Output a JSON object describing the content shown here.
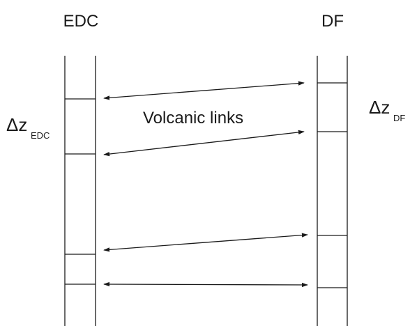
{
  "left_core": {
    "name": "EDC",
    "delta_symbol": "Δz",
    "delta_subscript": "EDC"
  },
  "right_core": {
    "name": "DF",
    "delta_symbol": "Δz",
    "delta_subscript": "DF"
  },
  "annotation": "Volcanic links",
  "colors": {
    "ink": "#1a1a1a",
    "background": "#ffffff"
  }
}
